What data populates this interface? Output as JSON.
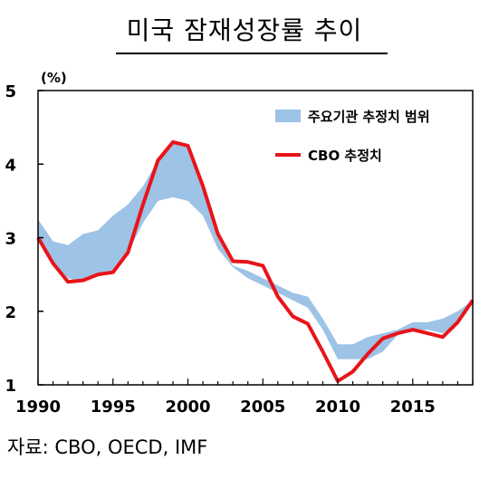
{
  "title": "미국 잠재성장률 추이",
  "source": "자료: CBO, OECD, IMF",
  "chart_data": {
    "type": "area",
    "unit_label": "(%)",
    "xlim": [
      1990,
      2019
    ],
    "ylim": [
      1,
      5
    ],
    "yticks": [
      "1",
      "2",
      "3",
      "4",
      "5"
    ],
    "xticks": [
      "1990",
      "1995",
      "2000",
      "2005",
      "2010",
      "2015"
    ],
    "legend": {
      "placement": "top-right",
      "range_label": "주요기관 추정치 범위",
      "cbo_label": "CBO 추정치"
    },
    "colors": {
      "range": "#9dc3e6",
      "cbo": "#e8141a"
    },
    "x": [
      1990,
      1991,
      1992,
      1993,
      1994,
      1995,
      1996,
      1997,
      1998,
      1999,
      2000,
      2001,
      2002,
      2003,
      2004,
      2005,
      2006,
      2007,
      2008,
      2009,
      2010,
      2011,
      2012,
      2013,
      2014,
      2015,
      2016,
      2017,
      2018,
      2019
    ],
    "range_upper": [
      3.25,
      2.95,
      2.9,
      3.05,
      3.1,
      3.3,
      3.45,
      3.7,
      4.05,
      4.28,
      4.22,
      3.7,
      3.0,
      2.62,
      2.55,
      2.45,
      2.35,
      2.25,
      2.2,
      1.9,
      1.55,
      1.55,
      1.65,
      1.7,
      1.75,
      1.85,
      1.85,
      1.9,
      2.0,
      2.15
    ],
    "range_lower": [
      2.95,
      2.65,
      2.45,
      2.4,
      2.5,
      2.55,
      2.8,
      3.2,
      3.5,
      3.55,
      3.5,
      3.3,
      2.85,
      2.6,
      2.45,
      2.35,
      2.25,
      2.15,
      2.05,
      1.75,
      1.35,
      1.35,
      1.35,
      1.45,
      1.68,
      1.72,
      1.75,
      1.7,
      1.85,
      2.1
    ],
    "cbo": [
      3.0,
      2.65,
      2.4,
      2.42,
      2.5,
      2.53,
      2.8,
      3.45,
      4.05,
      4.3,
      4.25,
      3.7,
      3.05,
      2.68,
      2.67,
      2.62,
      2.2,
      1.93,
      1.83,
      1.45,
      1.05,
      1.18,
      1.42,
      1.63,
      1.7,
      1.75,
      1.7,
      1.65,
      1.85,
      2.15
    ]
  }
}
